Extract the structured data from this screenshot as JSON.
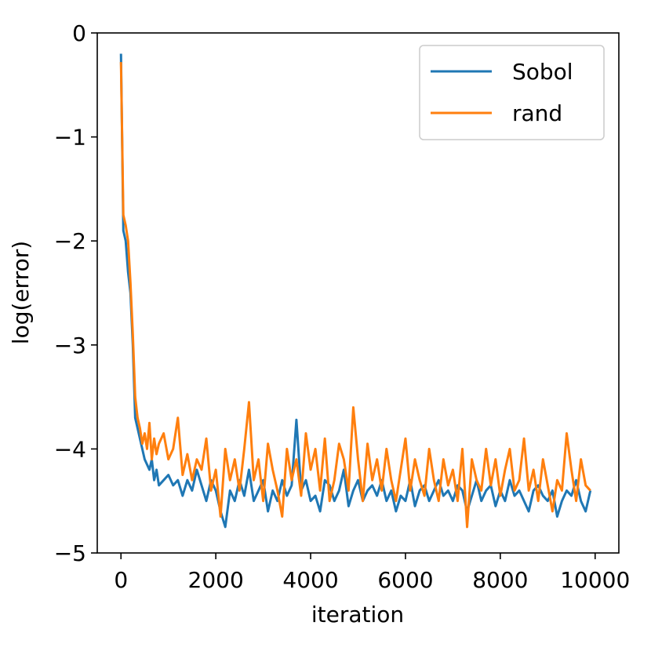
{
  "chart_data": {
    "type": "line",
    "title": "",
    "xlabel": "iteration",
    "ylabel": "log(error)",
    "xlim": [
      -500,
      10500
    ],
    "ylim": [
      -5,
      0
    ],
    "xticks": [
      0,
      2000,
      4000,
      6000,
      8000,
      10000
    ],
    "yticks": [
      0,
      -1,
      -2,
      -3,
      -4,
      -5
    ],
    "xtick_labels": [
      "0",
      "2000",
      "4000",
      "6000",
      "8000",
      "10000"
    ],
    "ytick_labels": [
      "0",
      "−1",
      "−2",
      "−3",
      "−4",
      "−5"
    ],
    "grid": false,
    "legend_position": "upper right",
    "series": [
      {
        "name": "Sobol",
        "color": "#1f77b4",
        "x": [
          0,
          50,
          100,
          150,
          200,
          250,
          300,
          350,
          400,
          450,
          500,
          550,
          600,
          650,
          700,
          750,
          800,
          900,
          1000,
          1100,
          1200,
          1300,
          1400,
          1500,
          1600,
          1700,
          1800,
          1900,
          2000,
          2100,
          2200,
          2300,
          2400,
          2500,
          2600,
          2700,
          2800,
          2900,
          3000,
          3100,
          3200,
          3300,
          3400,
          3500,
          3600,
          3700,
          3800,
          3900,
          4000,
          4100,
          4200,
          4300,
          4400,
          4500,
          4600,
          4700,
          4800,
          4900,
          5000,
          5100,
          5200,
          5300,
          5400,
          5500,
          5600,
          5700,
          5800,
          5900,
          6000,
          6100,
          6200,
          6300,
          6400,
          6500,
          6600,
          6700,
          6800,
          6900,
          7000,
          7100,
          7200,
          7300,
          7400,
          7500,
          7600,
          7700,
          7800,
          7900,
          8000,
          8100,
          8200,
          8300,
          8400,
          8500,
          8600,
          8700,
          8800,
          8900,
          9000,
          9100,
          9200,
          9300,
          9400,
          9500,
          9600,
          9700,
          9800,
          9900
        ],
        "y": [
          -0.2,
          -1.9,
          -2.0,
          -2.3,
          -2.5,
          -3.0,
          -3.7,
          -3.8,
          -3.9,
          -4.0,
          -4.1,
          -4.15,
          -4.2,
          -4.1,
          -4.3,
          -4.2,
          -4.35,
          -4.3,
          -4.25,
          -4.35,
          -4.3,
          -4.45,
          -4.3,
          -4.4,
          -4.2,
          -4.35,
          -4.5,
          -4.3,
          -4.4,
          -4.6,
          -4.75,
          -4.4,
          -4.5,
          -4.3,
          -4.45,
          -4.2,
          -4.5,
          -4.4,
          -4.3,
          -4.6,
          -4.4,
          -4.5,
          -4.3,
          -4.45,
          -4.35,
          -3.72,
          -4.4,
          -4.3,
          -4.5,
          -4.45,
          -4.6,
          -4.3,
          -4.35,
          -4.5,
          -4.4,
          -4.2,
          -4.55,
          -4.4,
          -4.3,
          -4.5,
          -4.4,
          -4.35,
          -4.45,
          -4.3,
          -4.5,
          -4.4,
          -4.6,
          -4.45,
          -4.5,
          -4.3,
          -4.55,
          -4.4,
          -4.35,
          -4.5,
          -4.4,
          -4.3,
          -4.45,
          -4.4,
          -4.5,
          -4.35,
          -4.4,
          -4.6,
          -4.45,
          -4.3,
          -4.5,
          -4.4,
          -4.35,
          -4.55,
          -4.4,
          -4.5,
          -4.3,
          -4.45,
          -4.4,
          -4.5,
          -4.6,
          -4.4,
          -4.35,
          -4.45,
          -4.5,
          -4.4,
          -4.65,
          -4.5,
          -4.4,
          -4.45,
          -4.3,
          -4.5,
          -4.6,
          -4.4
        ]
      },
      {
        "name": "rand",
        "color": "#ff7f0e",
        "x": [
          0,
          50,
          100,
          150,
          200,
          250,
          300,
          350,
          400,
          450,
          500,
          550,
          600,
          650,
          700,
          750,
          800,
          900,
          1000,
          1100,
          1200,
          1300,
          1400,
          1500,
          1600,
          1700,
          1800,
          1900,
          2000,
          2100,
          2200,
          2300,
          2400,
          2500,
          2600,
          2700,
          2800,
          2900,
          3000,
          3100,
          3200,
          3300,
          3400,
          3500,
          3600,
          3700,
          3800,
          3900,
          4000,
          4100,
          4200,
          4300,
          4400,
          4500,
          4600,
          4700,
          4800,
          4900,
          5000,
          5100,
          5200,
          5300,
          5400,
          5500,
          5600,
          5700,
          5800,
          5900,
          6000,
          6100,
          6200,
          6300,
          6400,
          6500,
          6600,
          6700,
          6800,
          6900,
          7000,
          7100,
          7200,
          7300,
          7400,
          7500,
          7600,
          7700,
          7800,
          7900,
          8000,
          8100,
          8200,
          8300,
          8400,
          8500,
          8600,
          8700,
          8800,
          8900,
          9000,
          9100,
          9200,
          9300,
          9400,
          9500,
          9600,
          9700,
          9800,
          9900
        ],
        "y": [
          -0.28,
          -1.75,
          -1.85,
          -2.0,
          -2.4,
          -2.9,
          -3.5,
          -3.7,
          -3.8,
          -3.95,
          -3.85,
          -4.0,
          -3.75,
          -4.1,
          -3.9,
          -4.05,
          -3.95,
          -3.85,
          -4.1,
          -4.0,
          -3.7,
          -4.25,
          -4.05,
          -4.3,
          -4.1,
          -4.2,
          -3.9,
          -4.4,
          -4.2,
          -4.65,
          -4.0,
          -4.3,
          -4.1,
          -4.4,
          -4.0,
          -3.55,
          -4.3,
          -4.1,
          -4.5,
          -3.95,
          -4.2,
          -4.4,
          -4.65,
          -4.0,
          -4.3,
          -4.1,
          -4.45,
          -3.85,
          -4.2,
          -4.0,
          -4.4,
          -3.9,
          -4.5,
          -4.3,
          -3.95,
          -4.1,
          -4.4,
          -3.6,
          -4.1,
          -4.5,
          -3.95,
          -4.3,
          -4.1,
          -4.4,
          -4.0,
          -4.3,
          -4.5,
          -4.2,
          -3.9,
          -4.4,
          -4.1,
          -4.3,
          -4.45,
          -4.0,
          -4.3,
          -4.5,
          -4.1,
          -4.35,
          -4.2,
          -4.5,
          -4.0,
          -4.75,
          -4.1,
          -4.3,
          -4.4,
          -4.0,
          -4.35,
          -4.1,
          -4.45,
          -4.2,
          -4.0,
          -4.4,
          -4.3,
          -3.9,
          -4.4,
          -4.2,
          -4.5,
          -4.1,
          -4.35,
          -4.6,
          -4.3,
          -4.4,
          -3.85,
          -4.2,
          -4.5,
          -4.1,
          -4.35,
          -4.4
        ]
      }
    ]
  }
}
